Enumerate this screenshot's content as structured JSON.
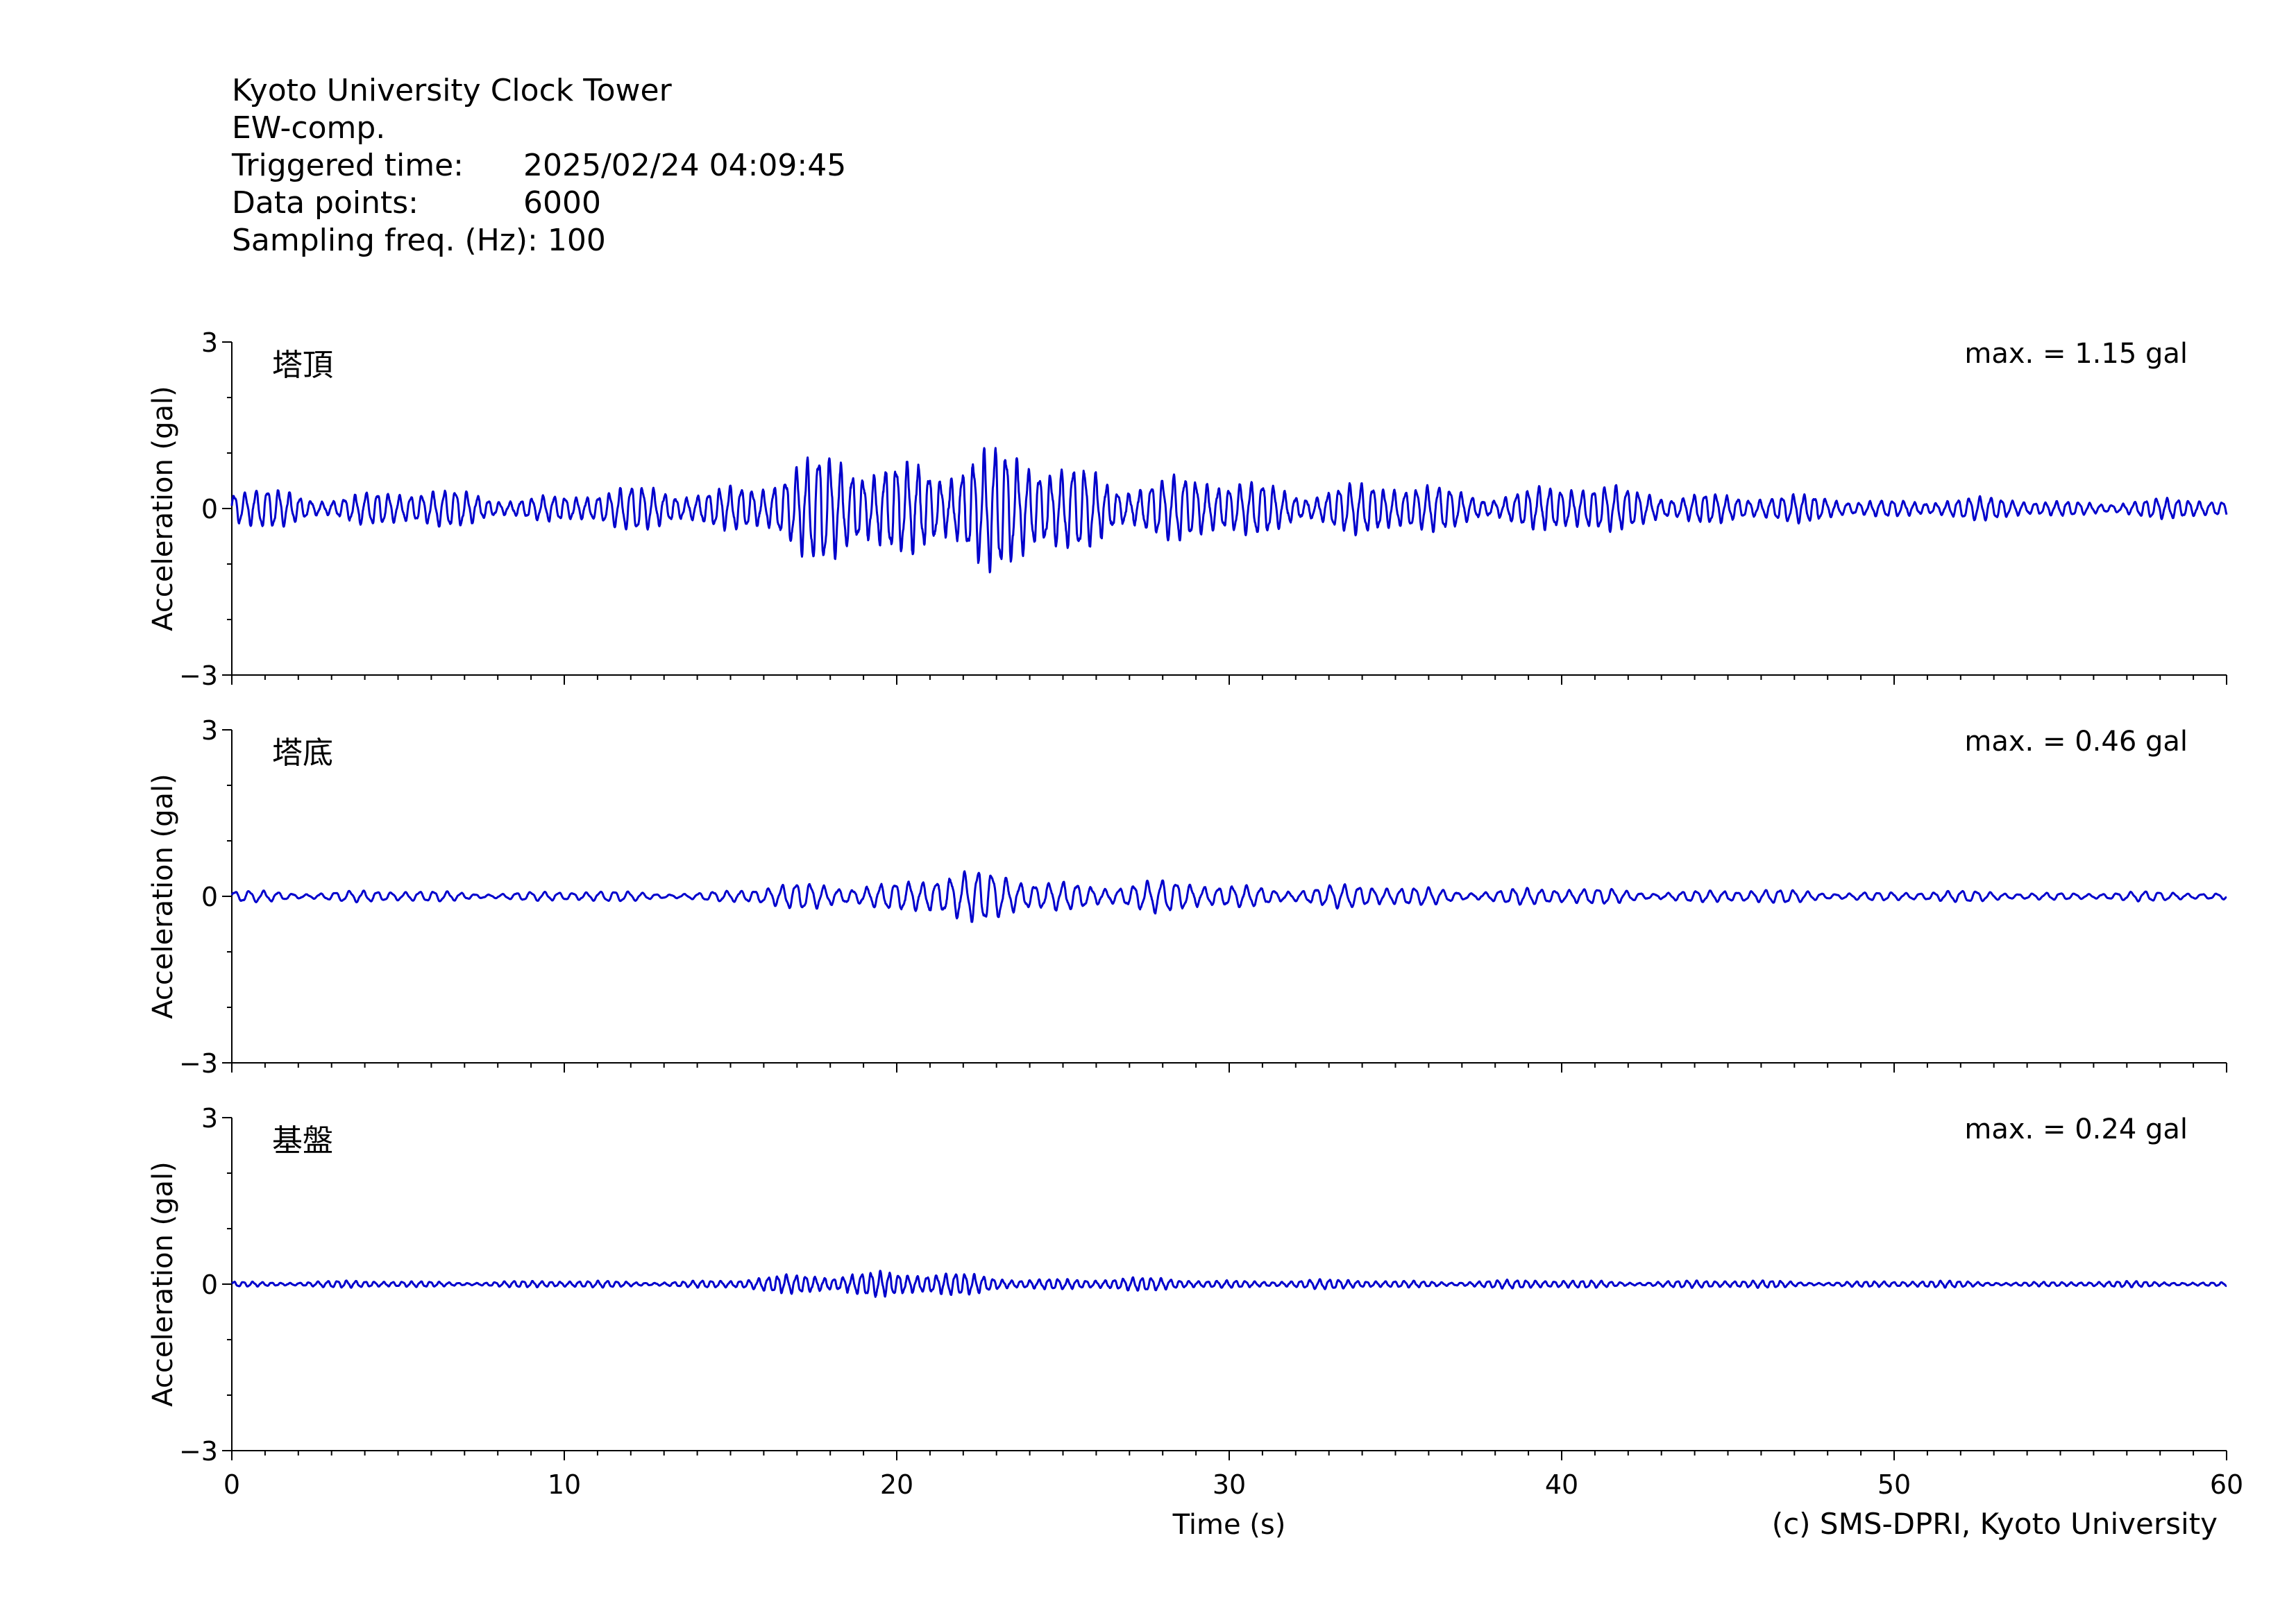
{
  "header": {
    "station": "Kyoto University Clock Tower",
    "component": "EW-comp.",
    "triggered_label": "Triggered time:",
    "triggered_value": "2025/02/24 04:09:45",
    "points_label": "Data points:",
    "points_value": "6000",
    "freq_label": "Sampling freq. (Hz):",
    "freq_value": "100"
  },
  "credit": "(c) SMS-DPRI, Kyoto University",
  "chart_data": [
    {
      "type": "line",
      "panel_label": "塔頂",
      "max_text": "max. = 1.15 gal",
      "ylabel": "Acceleration (gal)",
      "ylim": [
        -3,
        3
      ],
      "yticks": [
        -3,
        0,
        3
      ],
      "ytick_labels": [
        "−3",
        "0",
        "3"
      ],
      "xlim": [
        0,
        60
      ],
      "color": "#0000cc",
      "max_abs": 1.15,
      "envelope": {
        "t": [
          0,
          10,
          14,
          16,
          18,
          20,
          21,
          22,
          23.5,
          25,
          26,
          28,
          30,
          33,
          36,
          38,
          40,
          42,
          44,
          46,
          50,
          55,
          60
        ],
        "a": [
          0.32,
          0.25,
          0.38,
          0.55,
          0.8,
          0.95,
          1.1,
          0.95,
          0.85,
          0.8,
          0.8,
          0.5,
          0.45,
          0.45,
          0.35,
          0.35,
          0.42,
          0.3,
          0.35,
          0.2,
          0.18,
          0.15,
          0.15
        ]
      },
      "dominant_period_s": 0.33
    },
    {
      "type": "line",
      "panel_label": "塔底",
      "max_text": "max. = 0.46 gal",
      "ylabel": "Acceleration (gal)",
      "ylim": [
        -3,
        3
      ],
      "yticks": [
        -3,
        0,
        3
      ],
      "ytick_labels": [
        "−3",
        "0",
        "3"
      ],
      "xlim": [
        0,
        60
      ],
      "color": "#0000cc",
      "max_abs": 0.46,
      "envelope": {
        "t": [
          0,
          5,
          14,
          16,
          18,
          20,
          21,
          22,
          24,
          26,
          28,
          30,
          35,
          40,
          45,
          50,
          60
        ],
        "a": [
          0.1,
          0.08,
          0.07,
          0.15,
          0.2,
          0.28,
          0.42,
          0.35,
          0.32,
          0.25,
          0.22,
          0.2,
          0.15,
          0.12,
          0.1,
          0.08,
          0.06
        ]
      },
      "dominant_period_s": 0.42
    },
    {
      "type": "line",
      "panel_label": "基盤",
      "max_text": "max. = 0.24 gal",
      "ylabel": "Acceleration (gal)",
      "ylim": [
        -3,
        3
      ],
      "yticks": [
        -3,
        0,
        3
      ],
      "ytick_labels": [
        "−3",
        "0",
        "3"
      ],
      "xlim": [
        0,
        60
      ],
      "color": "#0000cc",
      "max_abs": 0.24,
      "envelope": {
        "t": [
          0,
          10,
          15,
          17,
          18.5,
          20,
          21,
          23,
          26,
          30,
          35,
          40,
          50,
          60
        ],
        "a": [
          0.04,
          0.04,
          0.05,
          0.12,
          0.22,
          0.18,
          0.14,
          0.1,
          0.08,
          0.06,
          0.05,
          0.05,
          0.04,
          0.03
        ]
      },
      "dominant_period_s": 0.28
    }
  ],
  "x_axis": {
    "xlabel": "Time (s)",
    "ticks": [
      0,
      10,
      20,
      30,
      40,
      50,
      60
    ],
    "tick_labels": [
      "0",
      "10",
      "20",
      "30",
      "40",
      "50",
      "60"
    ]
  }
}
